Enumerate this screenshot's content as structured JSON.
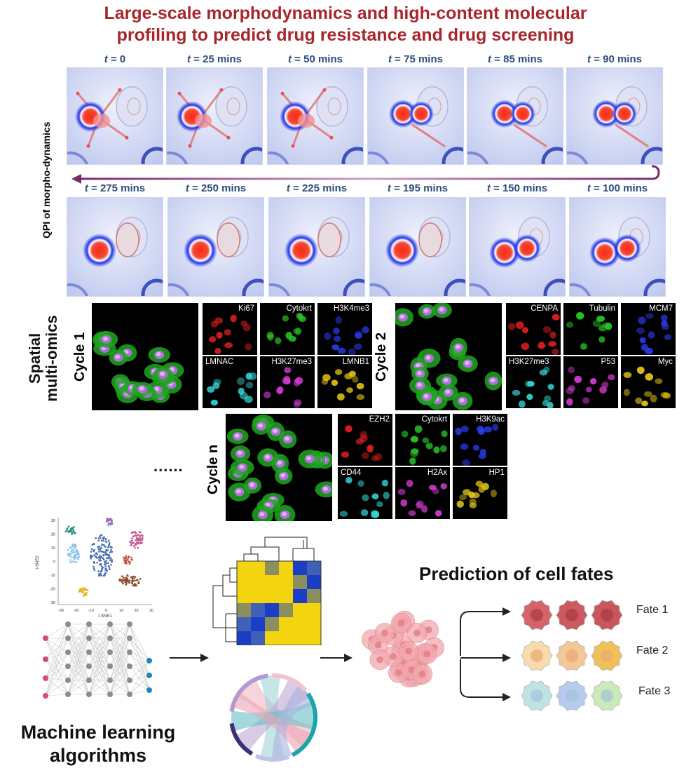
{
  "title": {
    "line1": "Large-scale morphodynamics and high-content molecular",
    "line2": "profiling to predict drug resistance and drug screening"
  },
  "qpi": {
    "side_label": "QPI of morpho-dynamics",
    "top_row": [
      {
        "t": "t",
        "rest": "= 0"
      },
      {
        "t": "t",
        "rest": "= 25 mins"
      },
      {
        "t": "t",
        "rest": "= 50 mins"
      },
      {
        "t": "t",
        "rest": "= 75 mins"
      },
      {
        "t": "t",
        "rest": "= 85 mins"
      },
      {
        "t": "t",
        "rest": "= 90 mins"
      }
    ],
    "bottom_row": [
      {
        "t": "t",
        "rest": "= 275 mins"
      },
      {
        "t": "t",
        "rest": "= 250 mins"
      },
      {
        "t": "t",
        "rest": "= 225 mins"
      },
      {
        "t": "t",
        "rest": "= 195 mins"
      },
      {
        "t": "t",
        "rest": "= 150 mins"
      },
      {
        "t": "t",
        "rest": "= 100 mins"
      }
    ]
  },
  "omics": {
    "side_label_1": "Spatial",
    "side_label_2": "multi-omics",
    "cycle1": {
      "label": "Cycle 1",
      "markers": [
        "Ki67",
        "Cytokrt",
        "H3K4me3",
        "LMNAC",
        "H3K27me3",
        "LMNB1"
      ]
    },
    "cycle2": {
      "label": "Cycle 2",
      "markers": [
        "CENPA",
        "Tubulin",
        "MCM7",
        "H3K27me3",
        "P53",
        "Myc"
      ]
    },
    "cyclen": {
      "label": "Cycle n",
      "markers": [
        "EZH2",
        "Cytokrt",
        "H3K9ac",
        "CD44",
        "H2Ax",
        "HP1"
      ]
    },
    "ellipsis": "......",
    "colors": [
      "#e0201e",
      "#28c428",
      "#2a3ae8",
      "#35d6d6",
      "#d43cd4",
      "#e3c515"
    ]
  },
  "tsne": {
    "xlabel": "t-SNE1",
    "ylabel": "t-SNE2",
    "xticks": [
      "-30",
      "-20",
      "-10",
      "0",
      "10",
      "20",
      "30"
    ],
    "yticks": [
      "30",
      "20",
      "10",
      "0",
      "-10",
      "-20",
      "-30"
    ]
  },
  "ml": {
    "label1": "Machine learning",
    "label2": "algorithms"
  },
  "prediction": {
    "title": "Prediction of cell fates",
    "fates": [
      "Fate 1",
      "Fate 2",
      "Fate 3"
    ]
  }
}
